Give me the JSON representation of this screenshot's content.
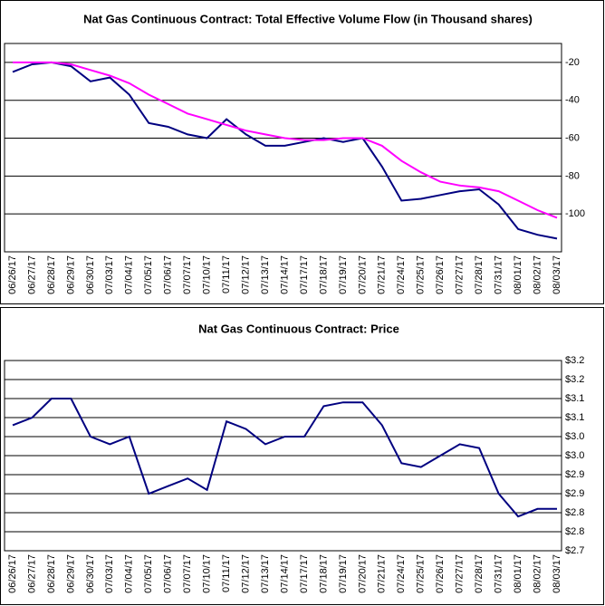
{
  "chart_data": [
    {
      "type": "line",
      "title": "Nat Gas Continuous Contract: Total Effective Volume Flow (in Thousand shares)",
      "categories": [
        "06/26/17",
        "06/27/17",
        "06/28/17",
        "06/29/17",
        "06/30/17",
        "07/03/17",
        "07/04/17",
        "07/05/17",
        "07/06/17",
        "07/07/17",
        "07/10/17",
        "07/11/17",
        "07/12/17",
        "07/13/17",
        "07/14/17",
        "07/17/17",
        "07/18/17",
        "07/19/17",
        "07/20/17",
        "07/21/17",
        "07/24/17",
        "07/25/17",
        "07/26/17",
        "07/27/17",
        "07/28/17",
        "07/31/17",
        "08/01/17",
        "08/02/17",
        "08/03/17"
      ],
      "series": [
        {
          "color": "#000080",
          "values": [
            -25,
            -21,
            -20,
            -22,
            -30,
            -28,
            -37,
            -52,
            -54,
            -58,
            -60,
            -50,
            -58,
            -64,
            -64,
            -62,
            -60,
            -62,
            -60,
            -75,
            -93,
            -92,
            -90,
            -88,
            -87,
            -95,
            -108,
            -111,
            -113
          ]
        },
        {
          "color": "#ff00ff",
          "values": [
            -20,
            -20,
            -20,
            -21,
            -24,
            -27,
            -31,
            -37,
            -42,
            -47,
            -50,
            -53,
            -56,
            -58,
            -60,
            -61,
            -61,
            -60,
            -60,
            -64,
            -72,
            -78,
            -83,
            -85,
            -86,
            -88,
            -93,
            -98,
            -102
          ]
        }
      ],
      "ylim": [
        -120,
        -10
      ],
      "yticks": [
        -20,
        -40,
        -60,
        -80,
        -100
      ],
      "grid": true,
      "yaxis_position": "right"
    },
    {
      "type": "line",
      "title": "Nat Gas Continuous Contract: Price",
      "categories": [
        "06/26/17",
        "06/27/17",
        "06/28/17",
        "06/29/17",
        "06/30/17",
        "07/03/17",
        "07/04/17",
        "07/05/17",
        "07/06/17",
        "07/07/17",
        "07/10/17",
        "07/11/17",
        "07/12/17",
        "07/13/17",
        "07/14/17",
        "07/17/17",
        "07/18/17",
        "07/19/17",
        "07/20/17",
        "07/21/17",
        "07/24/17",
        "07/25/17",
        "07/26/17",
        "07/27/17",
        "07/28/17",
        "07/31/17",
        "08/01/17",
        "08/02/17",
        "08/03/17"
      ],
      "series": [
        {
          "color": "#000080",
          "values": [
            3.03,
            3.05,
            3.1,
            3.1,
            3.0,
            2.98,
            3.0,
            2.85,
            2.87,
            2.89,
            2.86,
            3.04,
            3.02,
            2.98,
            3.0,
            3.0,
            3.08,
            3.09,
            3.09,
            3.03,
            2.93,
            2.92,
            2.95,
            2.98,
            2.97,
            2.85,
            2.79,
            2.81,
            2.81
          ]
        }
      ],
      "ylim": [
        2.7,
        3.2
      ],
      "yticks": [
        {
          "value": 3.2,
          "label": "$3.2"
        },
        {
          "value": 3.15,
          "label": "$3.2"
        },
        {
          "value": 3.1,
          "label": "$3.1"
        },
        {
          "value": 3.05,
          "label": "$3.1"
        },
        {
          "value": 3.0,
          "label": "$3.0"
        },
        {
          "value": 2.95,
          "label": "$3.0"
        },
        {
          "value": 2.9,
          "label": "$2.9"
        },
        {
          "value": 2.85,
          "label": "$2.9"
        },
        {
          "value": 2.8,
          "label": "$2.8"
        },
        {
          "value": 2.75,
          "label": "$2.8"
        },
        {
          "value": 2.7,
          "label": "$2.7"
        }
      ],
      "grid": true,
      "yaxis_position": "right"
    }
  ]
}
